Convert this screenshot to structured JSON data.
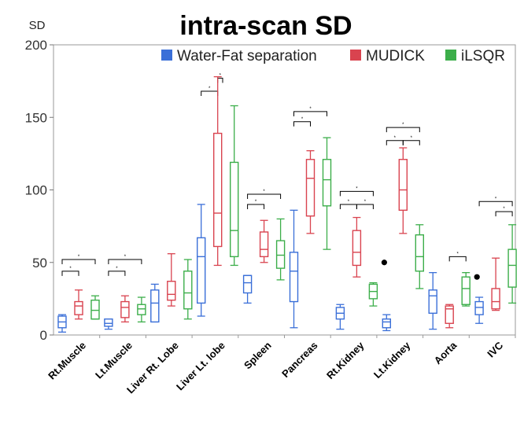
{
  "chart_data": {
    "type": "box",
    "title": "intra-scan SD",
    "ylabel": "SD",
    "xlabel": "",
    "ylim": [
      0,
      200
    ],
    "yticks": [
      0,
      50,
      100,
      150,
      200
    ],
    "grid": false,
    "legend_position": "top-right",
    "categories": [
      "Rt.Muscle",
      "Lt.Muscle",
      "Liver Rt. Lobe",
      "Liver Lt. lobe",
      "Spleen",
      "Pancreas",
      "Rt.Kidney",
      "Lt.Kidney",
      "Aorta",
      "IVC"
    ],
    "series": [
      {
        "name": "Water-Fat separation",
        "color": "#3a6fd8",
        "boxes": [
          {
            "min": 2,
            "q1": 5,
            "median": 9,
            "q3": 13,
            "max": 14
          },
          {
            "min": 4,
            "q1": 6,
            "median": 8,
            "q3": 11,
            "max": 11
          },
          {
            "min": 9,
            "q1": 9,
            "median": 22,
            "q3": 31,
            "max": 35
          },
          {
            "min": 13,
            "q1": 22,
            "median": 54,
            "q3": 67,
            "max": 90
          },
          {
            "min": 22,
            "q1": 29,
            "median": 36,
            "q3": 41,
            "max": 41
          },
          {
            "min": 5,
            "q1": 23,
            "median": 44,
            "q3": 57,
            "max": 86
          },
          {
            "min": 4,
            "q1": 11,
            "median": 15,
            "q3": 19,
            "max": 21
          },
          {
            "min": 3,
            "q1": 5,
            "median": 9,
            "q3": 11,
            "max": 14
          },
          {
            "min": 4,
            "q1": 15,
            "median": 27,
            "q3": 31,
            "max": 43
          },
          {
            "min": 8,
            "q1": 14,
            "median": 19,
            "q3": 23,
            "max": 26
          }
        ],
        "outliers": []
      },
      {
        "name": "MUDICK",
        "color": "#d9434f",
        "boxes": [
          {
            "min": 11,
            "q1": 14,
            "median": 20,
            "q3": 23,
            "max": 31
          },
          {
            "min": 9,
            "q1": 12,
            "median": 19,
            "q3": 23,
            "max": 27
          },
          {
            "min": 20,
            "q1": 24,
            "median": 28,
            "q3": 37,
            "max": 56
          },
          {
            "min": 48,
            "q1": 61,
            "median": 84,
            "q3": 139,
            "max": 178
          },
          {
            "min": 50,
            "q1": 54,
            "median": 59,
            "q3": 71,
            "max": 79
          },
          {
            "min": 70,
            "q1": 82,
            "median": 108,
            "q3": 121,
            "max": 127
          },
          {
            "min": 40,
            "q1": 48,
            "median": 57,
            "q3": 72,
            "max": 81
          },
          {
            "min": 70,
            "q1": 86,
            "median": 100,
            "q3": 121,
            "max": 129
          },
          {
            "min": 5,
            "q1": 8,
            "median": 18,
            "q3": 20,
            "max": 21
          },
          {
            "min": 17,
            "q1": 18,
            "median": 23,
            "q3": 32,
            "max": 53
          }
        ],
        "outliers": []
      },
      {
        "name": "iLSQR",
        "color": "#3cae4a",
        "boxes": [
          {
            "min": 11,
            "q1": 11,
            "median": 17,
            "q3": 24,
            "max": 27
          },
          {
            "min": 9,
            "q1": 14,
            "median": 18,
            "q3": 21,
            "max": 26
          },
          {
            "min": 11,
            "q1": 18,
            "median": 29,
            "q3": 44,
            "max": 52
          },
          {
            "min": 48,
            "q1": 54,
            "median": 72,
            "q3": 119,
            "max": 158
          },
          {
            "min": 38,
            "q1": 46,
            "median": 55,
            "q3": 65,
            "max": 80
          },
          {
            "min": 59,
            "q1": 89,
            "median": 107,
            "q3": 121,
            "max": 136
          },
          {
            "min": 20,
            "q1": 25,
            "median": 30,
            "q3": 35,
            "max": 36
          },
          {
            "min": 32,
            "q1": 44,
            "median": 54,
            "q3": 69,
            "max": 76
          },
          {
            "min": 20,
            "q1": 21,
            "median": 32,
            "q3": 40,
            "max": 43
          },
          {
            "min": 22,
            "q1": 33,
            "median": 48,
            "q3": 59,
            "max": 76
          }
        ],
        "outliers": [
          {
            "category": "Rt.Kidney",
            "value": 50
          },
          {
            "category": "Aorta",
            "value": 40
          }
        ]
      }
    ],
    "significance": [
      {
        "category": "Rt.Muscle",
        "from": 0,
        "to": 1,
        "level": 0,
        "y": 44,
        "label": "*"
      },
      {
        "category": "Rt.Muscle",
        "from": 0,
        "to": 2,
        "level": 1,
        "y": 52,
        "label": "*"
      },
      {
        "category": "Lt.Muscle",
        "from": 0,
        "to": 1,
        "level": 0,
        "y": 44,
        "label": "*"
      },
      {
        "category": "Lt.Muscle",
        "from": 0,
        "to": 2,
        "level": 1,
        "y": 52,
        "label": "*"
      },
      {
        "category": "Liver Lt. lobe",
        "from": 0,
        "to": 1,
        "level": 0,
        "y": 168,
        "label": "*"
      },
      {
        "category": "Liver Lt. lobe",
        "from": 1,
        "to": 1.3,
        "level": 1,
        "y": 177,
        "label": "*"
      },
      {
        "category": "Spleen",
        "from": 0,
        "to": 1,
        "level": 0,
        "y": 90,
        "label": "*"
      },
      {
        "category": "Spleen",
        "from": 0,
        "to": 2,
        "level": 1,
        "y": 97,
        "label": "*"
      },
      {
        "category": "Pancreas",
        "from": 0,
        "to": 1,
        "level": 0,
        "y": 147,
        "label": "*"
      },
      {
        "category": "Pancreas",
        "from": 0,
        "to": 2,
        "level": 1,
        "y": 154,
        "label": "*"
      },
      {
        "category": "Rt.Kidney",
        "from": 0,
        "to": 1,
        "level": 0,
        "y": 90,
        "label": "*"
      },
      {
        "category": "Rt.Kidney",
        "from": 1,
        "to": 2,
        "level": 0,
        "y": 90,
        "label": "*"
      },
      {
        "category": "Rt.Kidney",
        "from": 0,
        "to": 2,
        "level": 1,
        "y": 99,
        "label": "*"
      },
      {
        "category": "Lt.Kidney",
        "from": 0,
        "to": 1,
        "level": 0,
        "y": 134,
        "label": "*"
      },
      {
        "category": "Lt.Kidney",
        "from": 1,
        "to": 2,
        "level": 0,
        "y": 134,
        "label": "*"
      },
      {
        "category": "Lt.Kidney",
        "from": 0,
        "to": 2,
        "level": 1,
        "y": 143,
        "label": "*"
      },
      {
        "category": "Aorta",
        "from": 1,
        "to": 2,
        "level": 0,
        "y": 54,
        "label": "*"
      },
      {
        "category": "IVC",
        "from": 1,
        "to": 2,
        "level": 0,
        "y": 85,
        "label": "*"
      },
      {
        "category": "IVC",
        "from": 0,
        "to": 2,
        "level": 1,
        "y": 92,
        "label": "*"
      }
    ]
  }
}
